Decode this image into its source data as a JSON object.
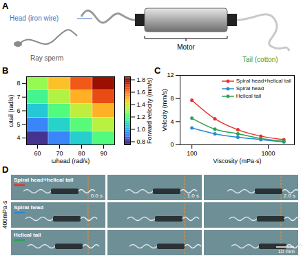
{
  "panel_a": {
    "letter": "A",
    "labels": {
      "head": "Head (iron wire)",
      "sperm": "Ray sperm",
      "motor": "Motor",
      "tail": "Tail (cotton)"
    }
  },
  "chart_data": [
    {
      "letter": "B",
      "type": "heatmap",
      "xlabel": "ωhead (rad/s)",
      "ylabel": "ωtail (rad/s)",
      "x": [
        60,
        70,
        80,
        90
      ],
      "y": [
        4,
        5,
        6,
        7,
        8
      ],
      "values": [
        [
          0.8,
          0.93,
          1.06,
          1.2
        ],
        [
          0.93,
          1.07,
          1.21,
          1.35
        ],
        [
          1.05,
          1.2,
          1.36,
          1.5
        ],
        [
          1.17,
          1.34,
          1.5,
          1.66
        ],
        [
          1.3,
          1.47,
          1.64,
          1.8
        ]
      ],
      "xlim": [
        55,
        95
      ],
      "xticks": [
        60,
        70,
        80,
        90
      ],
      "ylim": [
        3.5,
        8.5
      ],
      "yticks": [
        4,
        5,
        6,
        7,
        8
      ],
      "color_label": "Forward velocity (mm/s)",
      "color_range": [
        0.75,
        1.85
      ],
      "color_ticks": [
        0.8,
        {
          "value": 1,
          "label": "1.0"
        },
        1.2,
        1.4,
        1.6,
        1.8
      ]
    },
    {
      "letter": "C",
      "type": "line",
      "xlabel": "Viscosity (mPa·s)",
      "ylabel": "Velocity (mm/s)",
      "log": "x",
      "x": [
        100,
        200,
        400,
        800,
        1600
      ],
      "xlim": [
        70,
        2200
      ],
      "xticks": [
        100,
        1000
      ],
      "ylim": [
        0,
        12
      ],
      "yticks": [
        0,
        4,
        8,
        12
      ],
      "legend": "top-right",
      "marker": "circle",
      "series": [
        {
          "name": "Spiral head+helical tail",
          "color": "#e8312b",
          "values": [
            7.7,
            4.5,
            2.6,
            1.5,
            0.9
          ],
          "errors": [
            0.3,
            0.25,
            0.2,
            0.15,
            0.1
          ]
        },
        {
          "name": "Spiral head",
          "color": "#2a8ad0",
          "values": [
            2.9,
            1.9,
            1.3,
            0.9,
            0.5
          ],
          "errors": [
            0.2,
            0.15,
            0.1,
            0.1,
            0.1
          ]
        },
        {
          "name": "Helical tail",
          "color": "#2aa352",
          "values": [
            4.6,
            2.7,
            1.9,
            1.1,
            0.6
          ],
          "errors": [
            0.25,
            0.2,
            0.15,
            0.1,
            0.1
          ]
        }
      ]
    }
  ],
  "panel_d": {
    "letter": "D",
    "viscosity": "400mPa·s",
    "rows": [
      "Spiral head+helical tail",
      "Spiral head",
      "Helical tail"
    ],
    "times": [
      "0.0 s",
      "1.0 s",
      "2.0 s"
    ],
    "scale_bar": "10 mm"
  }
}
